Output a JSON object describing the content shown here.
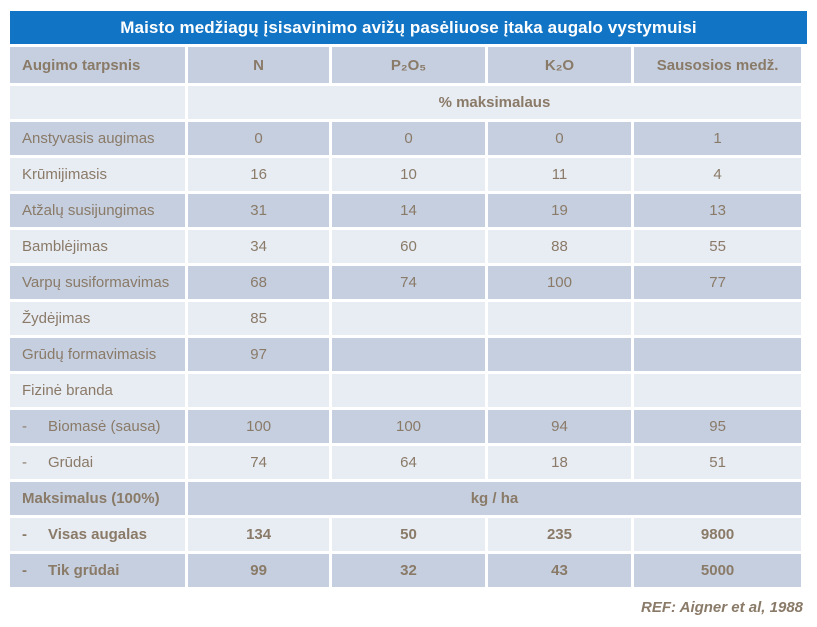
{
  "page": {
    "title": "Maisto medžiagų įsisavinimo avižų pasėliuose įtaka augalo vystymuisi",
    "footer_ref": "REF: Aigner et al, 1988"
  },
  "colors": {
    "title_bar_bg": "#1174c4",
    "title_text": "#ffffff",
    "row_dark": "#c5cfdf",
    "row_light": "#e8ecf3",
    "table_text": "#8a7a68",
    "cell_gap": "#ffffff"
  },
  "chart_data": {
    "type": "table",
    "title": "Maisto medžiagų įsisavinimo avižų pasėliuose įtaka augalo vystymuisi",
    "columns": [
      "Augimo tarpsnis",
      "N",
      "P₂O₅",
      "K₂O",
      "Sausosios medž."
    ],
    "spanner_percent": "% maksimalaus",
    "rows": [
      {
        "label": "Anstyvasis augimas",
        "values": [
          0,
          0,
          0,
          1
        ]
      },
      {
        "label": "Krūmijimasis",
        "values": [
          16,
          10,
          11,
          4
        ]
      },
      {
        "label": "Atžalų susijungimas",
        "values": [
          31,
          14,
          19,
          13
        ]
      },
      {
        "label": "Bamblėjimas",
        "values": [
          34,
          60,
          88,
          55
        ]
      },
      {
        "label": "Varpų susiformavimas",
        "values": [
          68,
          74,
          100,
          77
        ]
      },
      {
        "label": "Žydėjimas",
        "values": [
          85,
          "",
          "",
          ""
        ]
      },
      {
        "label": "Grūdų formavimasis",
        "values": [
          97,
          "",
          "",
          ""
        ]
      },
      {
        "label": "Fizinė branda",
        "values": [
          "",
          "",
          "",
          ""
        ]
      },
      {
        "label": "Biomasė (sausa)",
        "dash": "-",
        "values": [
          100,
          100,
          94,
          95
        ]
      },
      {
        "label": "Grūdai",
        "dash": "-",
        "values": [
          74,
          64,
          18,
          51
        ]
      }
    ],
    "max_section": {
      "label": "Maksimalus (100%)",
      "unit": "kg / ha",
      "rows": [
        {
          "label": "Visas augalas",
          "dash": "-",
          "values": [
            134,
            50,
            235,
            9800
          ]
        },
        {
          "label": "Tik grūdai",
          "dash": "-",
          "values": [
            99,
            32,
            43,
            5000
          ]
        }
      ]
    },
    "ref": "REF: Aigner et al, 1988"
  }
}
